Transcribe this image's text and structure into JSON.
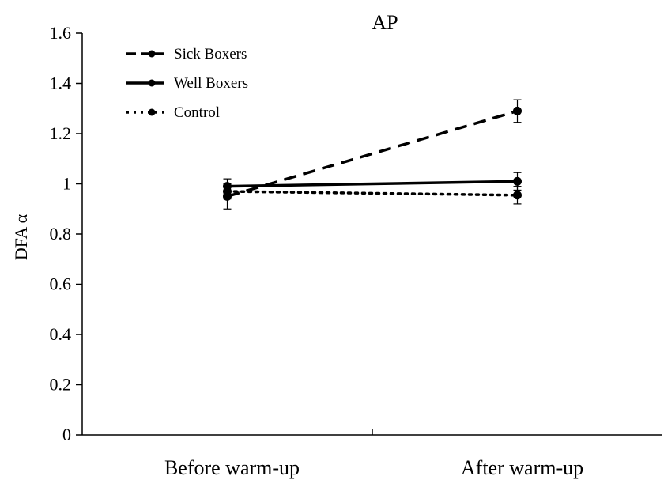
{
  "chart_data": {
    "type": "line",
    "title": "AP",
    "ylabel": "DFA α",
    "xlabel": "",
    "categories": [
      "Before warm-up",
      "After warm-up"
    ],
    "ylim": [
      0,
      1.6
    ],
    "yticks": [
      0,
      0.2,
      0.4,
      0.6,
      0.8,
      1,
      1.2,
      1.4,
      1.6
    ],
    "ytick_labels": [
      "0",
      "0.2",
      "0.4",
      "0.6",
      "0.8",
      "1",
      "1.2",
      "1.4",
      "1.6"
    ],
    "grid": false,
    "legend_position": "top-left",
    "series": [
      {
        "name": "Sick Boxers",
        "style": "dashed",
        "values": [
          0.95,
          1.29
        ],
        "errors": [
          0.05,
          0.045
        ],
        "color": "#000000"
      },
      {
        "name": "Well Boxers",
        "style": "solid",
        "values": [
          0.99,
          1.01
        ],
        "errors": [
          0.03,
          0.035
        ],
        "color": "#000000"
      },
      {
        "name": "Control",
        "style": "dotted",
        "values": [
          0.97,
          0.955
        ],
        "errors": [
          0.03,
          0.035
        ],
        "color": "#000000"
      }
    ]
  }
}
